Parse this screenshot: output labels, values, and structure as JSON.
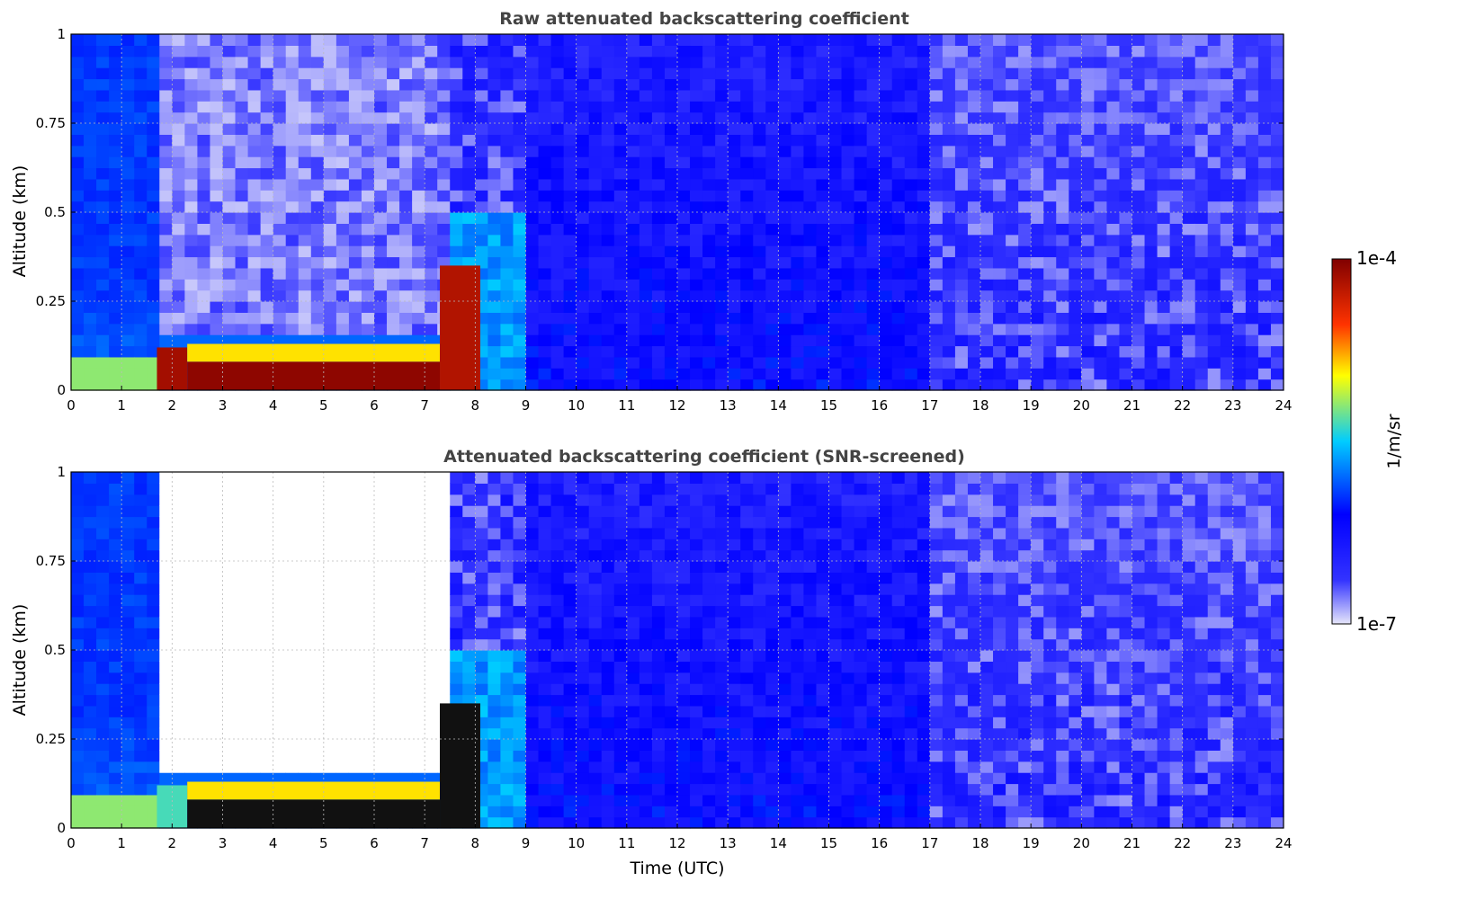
{
  "chart_data": [
    {
      "type": "heatmap",
      "title": "Raw attenuated backscattering coefficient",
      "xlabel": "",
      "ylabel": "Altitude (km)",
      "xlim": [
        0,
        24
      ],
      "ylim": [
        0,
        1
      ],
      "xticks": [
        "0",
        "1",
        "2",
        "3",
        "4",
        "5",
        "6",
        "7",
        "8",
        "9",
        "10",
        "11",
        "12",
        "13",
        "14",
        "15",
        "16",
        "17",
        "18",
        "19",
        "20",
        "21",
        "22",
        "23",
        "24"
      ],
      "yticks": [
        "0",
        "0.25",
        "0.5",
        "0.75",
        "1"
      ],
      "grid": true,
      "screened": false,
      "bands": [
        {
          "x0": 1.7,
          "x1": 2.3,
          "y0": 0.0,
          "y1": 0.12,
          "level": 0.95
        },
        {
          "x0": 2.3,
          "x1": 7.3,
          "y0": 0.0,
          "y1": 0.08,
          "level": 0.98
        },
        {
          "x0": 2.3,
          "x1": 7.3,
          "y0": 0.08,
          "y1": 0.13,
          "level": 0.7
        },
        {
          "x0": 7.3,
          "x1": 8.1,
          "y0": 0.0,
          "y1": 0.35,
          "level": 0.93
        }
      ]
    },
    {
      "type": "heatmap",
      "title": "Attenuated backscattering coefficient (SNR-screened)",
      "xlabel": "Time (UTC)",
      "ylabel": "Altitude (km)",
      "xlim": [
        0,
        24
      ],
      "ylim": [
        0,
        1
      ],
      "xticks": [
        "0",
        "1",
        "2",
        "3",
        "4",
        "5",
        "6",
        "7",
        "8",
        "9",
        "10",
        "11",
        "12",
        "13",
        "14",
        "15",
        "16",
        "17",
        "18",
        "19",
        "20",
        "21",
        "22",
        "23",
        "24"
      ],
      "yticks": [
        "0",
        "0.25",
        "0.5",
        "0.75",
        "1"
      ],
      "grid": true,
      "screened": true,
      "bands": [
        {
          "x0": 1.7,
          "x1": 2.3,
          "y0": 0.0,
          "y1": 0.12,
          "level": 0.55
        },
        {
          "x0": 2.3,
          "x1": 7.3,
          "y0": 0.0,
          "y1": 0.08,
          "level": -1
        },
        {
          "x0": 2.3,
          "x1": 7.3,
          "y0": 0.08,
          "y1": 0.13,
          "level": 0.7
        },
        {
          "x0": 7.3,
          "x1": 8.1,
          "y0": 0.0,
          "y1": 0.35,
          "level": -1
        }
      ]
    }
  ],
  "colorbar": {
    "max_label": "1e-4",
    "min_label": "1e-7",
    "label": "1/m/sr",
    "colormap": [
      "#e6e6fa",
      "#0000ff",
      "#00ffff",
      "#ffff00",
      "#ff0000",
      "#800000"
    ]
  }
}
